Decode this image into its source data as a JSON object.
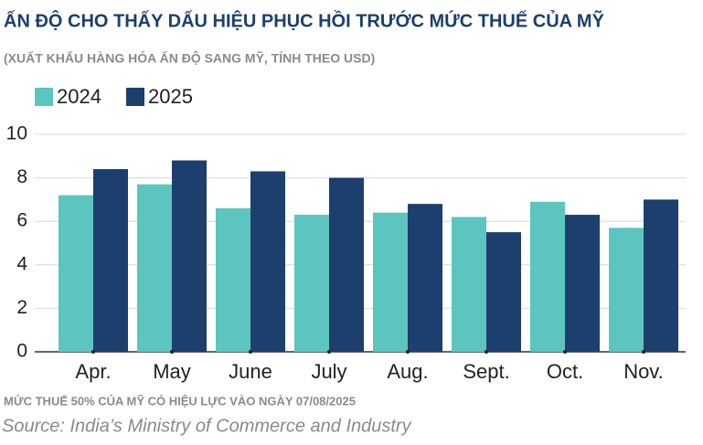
{
  "chart_data": {
    "type": "bar",
    "title": "ẤN ĐỘ CHO THẤY DẤU HIỆU PHỤC HỒI TRƯỚC MỨC THUẾ CỦA MỸ",
    "subtitle": "(XUẤT KHẨU HÀNG HÓA ẤN ĐỘ SANG MỸ, TÍNH THEO USD)",
    "categories": [
      "Apr.",
      "May",
      "June",
      "July",
      "Aug.",
      "Sept.",
      "Oct.",
      "Nov."
    ],
    "series": [
      {
        "name": "2024",
        "color": "#5cc5c0",
        "values": [
          7.2,
          7.7,
          6.6,
          6.3,
          6.4,
          6.2,
          6.9,
          5.7
        ]
      },
      {
        "name": "2025",
        "color": "#1c3f6e",
        "values": [
          8.4,
          8.8,
          8.3,
          8.0,
          6.8,
          5.5,
          6.3,
          7.0
        ]
      }
    ],
    "ylim": [
      0,
      10
    ],
    "yticks": [
      0,
      2,
      4,
      6,
      8,
      10
    ],
    "grid": true,
    "note": "MỨC THUẾ 50% CỦA MỸ CÓ HIỆU LỰC VÀO NGÀY 07/08/2025",
    "source": "Source: India’s Ministry of Commerce and Industry"
  }
}
